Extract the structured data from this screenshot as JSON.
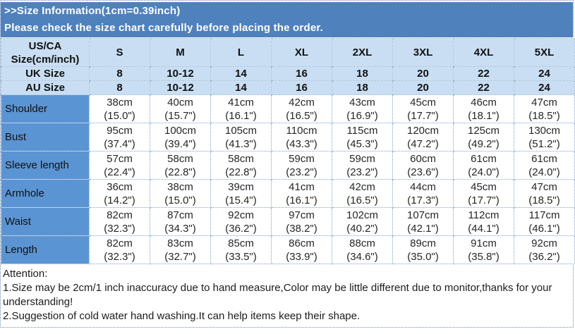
{
  "banner": {
    "title": ">>Size Information(1cm=0.39inch)",
    "subtitle": "Please check the size chart carefully before placing the order."
  },
  "table": {
    "corner_header": "US/CA\nSize(cm/inch)",
    "size_headers": [
      "S",
      "M",
      "L",
      "XL",
      "2XL",
      "3XL",
      "4XL",
      "5XL"
    ],
    "uk_row": {
      "label": "UK Size",
      "values": [
        "8",
        "10-12",
        "14",
        "16",
        "18",
        "20",
        "22",
        "24"
      ]
    },
    "au_row": {
      "label": "AU Size",
      "values": [
        "8",
        "10-12",
        "14",
        "16",
        "18",
        "20",
        "22",
        "24"
      ]
    },
    "rows": [
      {
        "label": "Shoulder",
        "cells": [
          "38cm\n(15.0\")",
          "40cm\n(15.7\")",
          "41cm\n(16.1\")",
          "42cm\n(16.5\")",
          "43cm\n(16.9\")",
          "45cm\n(17.7\")",
          "46cm\n(18.1\")",
          "47cm\n(18.5\")"
        ]
      },
      {
        "label": "Bust",
        "cells": [
          "95cm\n(37.4\")",
          "100cm\n(39.4\")",
          "105cm\n(41.3\")",
          "110cm\n(43.3\")",
          "115cm\n(45.3\")",
          "120cm\n(47.2\")",
          "125cm\n(49.2\")",
          "130cm\n(51.2\")"
        ]
      },
      {
        "label": "Sleeve length",
        "cells": [
          "57cm\n(22.4\")",
          "58cm\n(22.8\")",
          "58cm\n(22.8\")",
          "59cm\n(23.2\")",
          "59cm\n(23.2\")",
          "60cm\n(23.6\")",
          "61cm\n(24.0\")",
          "61cm\n(24.0\")"
        ]
      },
      {
        "label": "Armhole",
        "cells": [
          "36cm\n(14.2\")",
          "38cm\n(15.0\")",
          "39cm\n(15.4\")",
          "41cm\n(16.1\")",
          "42cm\n(16.5\")",
          "44cm\n(17.3\")",
          "45cm\n(17.7\")",
          "47cm\n(18.5\")"
        ]
      },
      {
        "label": "Waist",
        "cells": [
          "82cm\n(32.3\")",
          "87cm\n(34.3\")",
          "92cm\n(36.2\")",
          "97cm\n(38.2\")",
          "102cm\n(40.2\")",
          "107cm\n(42.1\")",
          "112cm\n(44.1\")",
          "117cm\n(46.1\")"
        ]
      },
      {
        "label": "Length",
        "cells": [
          "82cm\n(32.3\")",
          "83cm\n(32.7\")",
          "85cm\n(33.5\")",
          "86cm\n(33.9\")",
          "88cm\n(34.6\")",
          "89cm\n(35.0\")",
          "91cm\n(35.8\")",
          "92cm\n(36.2\")"
        ]
      }
    ]
  },
  "attention": {
    "lines": [
      "Attention:",
      "1.Size may be 2cm/1 inch inaccuracy due to hand measure,Color may be little different due to monitor,thanks for your",
      "understanding!",
      "2.Suggestion of cold water hand washing.It can help items keep their shape."
    ]
  },
  "colors": {
    "banner_bg": "#4f81bd",
    "banner_text": "#ffffff",
    "header_bg": "#c9def2",
    "label_bg": "#5b94d2",
    "grid_border": "#7ba2cf",
    "outer_border": "#6b8cb8"
  }
}
